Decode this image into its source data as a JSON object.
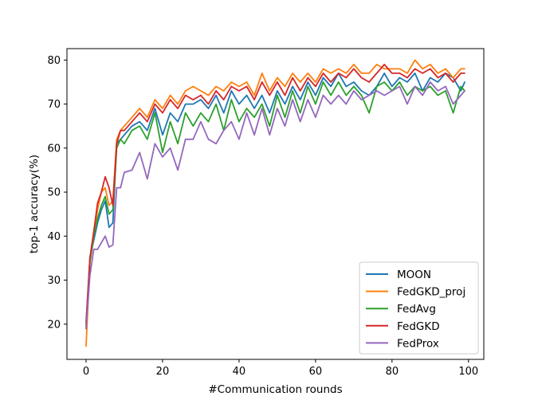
{
  "chart_data": {
    "type": "line",
    "xlabel": "#Communication rounds",
    "ylabel": "top-1 accuracy(%)",
    "xlim": [
      -5,
      104
    ],
    "ylim": [
      12,
      82.6
    ],
    "xticks": [
      0,
      20,
      40,
      60,
      80,
      100
    ],
    "yticks": [
      20,
      30,
      40,
      50,
      60,
      70,
      80
    ],
    "grid": false,
    "legend_position": "lower-right",
    "series": [
      {
        "name": "MOON",
        "color": "#1f77b4",
        "x": [
          0,
          1,
          2,
          3,
          4,
          5,
          6,
          7,
          8,
          9,
          10,
          12,
          14,
          16,
          18,
          20,
          22,
          24,
          26,
          28,
          30,
          32,
          34,
          36,
          38,
          40,
          42,
          44,
          46,
          48,
          50,
          52,
          54,
          56,
          58,
          60,
          62,
          64,
          66,
          68,
          70,
          72,
          74,
          76,
          78,
          80,
          82,
          84,
          86,
          88,
          90,
          92,
          94,
          96,
          98,
          99
        ],
        "values": [
          20.5,
          35,
          39,
          43,
          46,
          48,
          42,
          43,
          61,
          62,
          63,
          65,
          66,
          64,
          69,
          63,
          68,
          66,
          70,
          70,
          71,
          69,
          72,
          68,
          73,
          70,
          72,
          69,
          72,
          68,
          73,
          70,
          74,
          71,
          75,
          72,
          76,
          74,
          77,
          74,
          75,
          73,
          72,
          74,
          77,
          74,
          76,
          75,
          77,
          73,
          76,
          75,
          77,
          76,
          73,
          75
        ]
      },
      {
        "name": "FedGKD_proj",
        "color": "#ff7f0e",
        "x": [
          0,
          1,
          2,
          3,
          4,
          5,
          6,
          7,
          8,
          9,
          10,
          12,
          14,
          16,
          18,
          20,
          22,
          24,
          26,
          28,
          30,
          32,
          34,
          36,
          38,
          40,
          42,
          44,
          46,
          48,
          50,
          52,
          54,
          56,
          58,
          60,
          62,
          64,
          66,
          68,
          70,
          72,
          74,
          76,
          78,
          80,
          82,
          84,
          86,
          88,
          90,
          92,
          94,
          96,
          98,
          99
        ],
        "values": [
          15,
          34,
          40,
          46,
          50,
          51,
          47,
          48,
          62,
          64,
          65,
          67,
          69,
          67,
          71,
          69,
          72,
          70,
          73,
          74,
          73,
          72,
          74,
          73,
          75,
          74,
          75,
          72,
          77,
          73,
          76,
          74,
          77,
          75,
          77,
          75,
          78,
          77,
          78,
          77,
          79,
          77,
          77,
          79,
          78,
          78,
          78,
          77,
          80,
          78,
          79,
          77,
          78,
          76,
          78,
          78
        ]
      },
      {
        "name": "FedAvg",
        "color": "#2ca02c",
        "x": [
          0,
          1,
          2,
          3,
          4,
          5,
          6,
          7,
          8,
          9,
          10,
          12,
          14,
          16,
          18,
          20,
          22,
          24,
          26,
          28,
          30,
          32,
          34,
          36,
          38,
          40,
          42,
          44,
          46,
          48,
          50,
          52,
          54,
          56,
          58,
          60,
          62,
          64,
          66,
          68,
          70,
          72,
          74,
          76,
          78,
          80,
          82,
          84,
          86,
          88,
          90,
          92,
          94,
          96,
          98,
          99
        ],
        "values": [
          19,
          34,
          40,
          44,
          47,
          49,
          45,
          46,
          60,
          62,
          61,
          64,
          65,
          62,
          68,
          59,
          66,
          61,
          68,
          65,
          68,
          66,
          70,
          64,
          71,
          66,
          69,
          67,
          70,
          65,
          72,
          67,
          73,
          68,
          74,
          70,
          75,
          72,
          75,
          72,
          74,
          72,
          68,
          74,
          75,
          73,
          75,
          72,
          74,
          73,
          74,
          72,
          73,
          68,
          74,
          73
        ]
      },
      {
        "name": "FedGKD",
        "color": "#d62728",
        "x": [
          0,
          1,
          2,
          3,
          4,
          5,
          6,
          7,
          8,
          9,
          10,
          12,
          14,
          16,
          18,
          20,
          22,
          24,
          26,
          28,
          30,
          32,
          34,
          36,
          38,
          40,
          42,
          44,
          46,
          48,
          50,
          52,
          54,
          56,
          58,
          60,
          62,
          64,
          66,
          68,
          70,
          72,
          74,
          76,
          78,
          80,
          82,
          84,
          86,
          88,
          90,
          92,
          94,
          96,
          98,
          99
        ],
        "values": [
          20,
          35,
          41,
          47.5,
          50,
          53.5,
          51,
          47,
          61,
          64,
          64,
          66,
          68,
          66,
          70,
          68,
          71,
          69,
          72,
          71,
          72,
          70,
          73,
          71,
          74,
          73,
          74,
          71,
          75,
          72,
          75,
          72,
          76,
          73,
          76,
          74,
          77,
          75,
          77,
          76,
          78,
          76,
          75,
          77,
          79,
          77,
          77,
          76,
          78,
          77,
          78,
          76,
          77,
          75,
          77,
          77
        ]
      },
      {
        "name": "FedProx",
        "color": "#9467bd",
        "x": [
          0,
          1,
          2,
          3,
          4,
          5,
          6,
          7,
          8,
          9,
          10,
          12,
          14,
          16,
          18,
          20,
          22,
          24,
          26,
          28,
          30,
          32,
          34,
          36,
          38,
          40,
          42,
          44,
          46,
          48,
          50,
          52,
          54,
          56,
          58,
          60,
          62,
          64,
          66,
          68,
          70,
          72,
          74,
          76,
          78,
          80,
          82,
          84,
          86,
          88,
          90,
          92,
          94,
          96,
          98,
          99
        ],
        "values": [
          19,
          31,
          37,
          37,
          38.5,
          40,
          37.5,
          38,
          51,
          51,
          54.5,
          55,
          59,
          53,
          61,
          58,
          60,
          55,
          62,
          62,
          66,
          62,
          61,
          64,
          66,
          62,
          68,
          63,
          69,
          63,
          69,
          65,
          71,
          66,
          71,
          67,
          72,
          70,
          72,
          70,
          73,
          71,
          72,
          73,
          72,
          73,
          74,
          70,
          74,
          72,
          75,
          73,
          74,
          70,
          72,
          73
        ]
      }
    ]
  }
}
